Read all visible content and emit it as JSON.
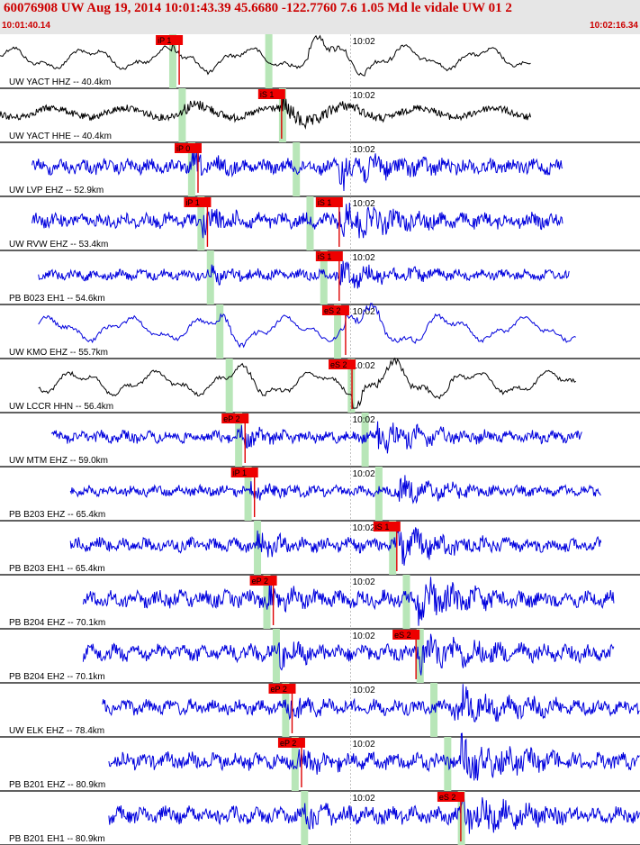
{
  "header": {
    "title": "60076908 UW Aug 19, 2014 10:01:43.39   45.6680 -122.7760  7.6 1.05 Md le vidale UW 01   2",
    "time_start": "10:01:40.14",
    "time_end": "10:02:16.34"
  },
  "colors": {
    "header_bg": "#e6e6e6",
    "header_text": "#cc0000",
    "trace_black": "#000000",
    "trace_blue": "#0000dd",
    "pick": "#dd0000",
    "pick_label_bg": "#ee0000",
    "model_band": "#b8e6b8"
  },
  "chart_data": {
    "type": "line",
    "title": "60076908 UW Aug 19, 2014 10:01:43.39   45.6680 -122.7760  7.6 1.05 Md le vidale UW 01   2",
    "x_range": [
      "10:01:40.14",
      "10:02:16.34"
    ],
    "minute_tick_label": "10:02",
    "traces": [
      {
        "label": "UW YACT HHZ -- 40.4km",
        "color": "black",
        "amp": 0.45,
        "style": "lowfreq",
        "p_pick": "iP 1",
        "p_label": "iP 1",
        "s_pick": "",
        "s_label": "",
        "noise_start": 0.0,
        "noise_end": 0.83,
        "s_arrival": 0.48
      },
      {
        "label": "UW YACT HHE -- 40.4km",
        "color": "black",
        "amp": 0.45,
        "style": "mixed",
        "p_pick": "",
        "p_label": "",
        "s_pick": "iS 1",
        "s_label": "iS 1",
        "noise_start": 0.0,
        "noise_end": 0.83,
        "s_arrival": 0.44
      },
      {
        "label": "UW LVP EHZ -- 52.9km",
        "color": "blue",
        "amp": 0.5,
        "style": "hf",
        "p_pick": "iP 0",
        "p_label": "iP 0",
        "s_pick": "",
        "s_label": "",
        "noise_start": 0.05,
        "noise_end": 0.88,
        "s_arrival": 0.53
      },
      {
        "label": "UW RVW EHZ -- 53.4km",
        "color": "blue",
        "amp": 0.5,
        "style": "hf",
        "p_pick": "iP 1",
        "p_label": "iP 1",
        "s_pick": "iS 1",
        "s_label": "iS 1",
        "noise_start": 0.05,
        "noise_end": 0.88,
        "s_arrival": 0.53
      },
      {
        "label": "PB B023 EH1 -- 54.6km",
        "color": "blue",
        "amp": 0.35,
        "style": "hf",
        "p_pick": "",
        "p_label": "",
        "s_pick": "iS 1",
        "s_label": "iS 1",
        "noise_start": 0.06,
        "noise_end": 0.89,
        "s_arrival": 0.53
      },
      {
        "label": "UW KMO EHZ -- 55.7km",
        "color": "blue",
        "amp": 0.5,
        "style": "lowfreq",
        "p_pick": "",
        "p_label": "",
        "s_pick": "eS 2",
        "s_label": "eS 2",
        "noise_start": 0.06,
        "noise_end": 0.9,
        "s_arrival": 0.54
      },
      {
        "label": "UW LCCR HHN -- 56.4km",
        "color": "black",
        "amp": 0.5,
        "style": "lowfreq",
        "p_pick": "",
        "p_label": "",
        "s_pick": "eS 2",
        "s_label": "eS 2",
        "noise_start": 0.06,
        "noise_end": 0.9,
        "s_arrival": 0.55
      },
      {
        "label": "UW MTM EHZ -- 59.0km",
        "color": "blue",
        "amp": 0.4,
        "style": "hf",
        "p_pick": "eP 2",
        "p_label": "eP 2",
        "s_pick": "",
        "s_label": "",
        "noise_start": 0.08,
        "noise_end": 0.91,
        "s_arrival": 0.59
      },
      {
        "label": "PB B203 EHZ -- 65.4km",
        "color": "blue",
        "amp": 0.35,
        "style": "hf",
        "p_pick": "iP 1",
        "p_label": "iP 1",
        "s_pick": "",
        "s_label": "",
        "noise_start": 0.11,
        "noise_end": 0.94,
        "s_arrival": 0.62
      },
      {
        "label": "PB B203 EH1 -- 65.4km",
        "color": "blue",
        "amp": 0.45,
        "style": "hf",
        "p_pick": "",
        "p_label": "",
        "s_pick": "iS 1",
        "s_label": "iS 1",
        "noise_start": 0.11,
        "noise_end": 0.94,
        "s_arrival": 0.62
      },
      {
        "label": "PB B204 EHZ -- 70.1km",
        "color": "blue",
        "amp": 0.55,
        "style": "hf",
        "p_pick": "eP 2",
        "p_label": "eP 2",
        "s_pick": "",
        "s_label": "",
        "noise_start": 0.13,
        "noise_end": 0.96,
        "s_arrival": 0.65
      },
      {
        "label": "PB B204 EH2 -- 70.1km",
        "color": "blue",
        "amp": 0.55,
        "style": "hf",
        "p_pick": "",
        "p_label": "",
        "s_pick": "eS 2",
        "s_label": "eS 2",
        "noise_start": 0.13,
        "noise_end": 0.96,
        "s_arrival": 0.65
      },
      {
        "label": "UW ELK EHZ -- 78.4km",
        "color": "blue",
        "amp": 0.5,
        "style": "hf",
        "p_pick": "eP 2",
        "p_label": "eP 2",
        "s_pick": "",
        "s_label": "",
        "noise_start": 0.16,
        "noise_end": 1.0,
        "s_arrival": 0.71
      },
      {
        "label": "PB B201 EHZ -- 80.9km",
        "color": "blue",
        "amp": 0.55,
        "style": "hf",
        "p_pick": "eP 2",
        "p_label": "eP 2",
        "s_pick": "",
        "s_label": "",
        "noise_start": 0.17,
        "noise_end": 1.0,
        "s_arrival": 0.72
      },
      {
        "label": "PB B201 EH1 -- 80.9km",
        "color": "blue",
        "amp": 0.55,
        "style": "hf",
        "p_pick": "",
        "p_label": "",
        "s_pick": "eS 2",
        "s_label": "eS 2",
        "noise_start": 0.17,
        "noise_end": 1.0,
        "s_arrival": 0.72
      }
    ]
  }
}
